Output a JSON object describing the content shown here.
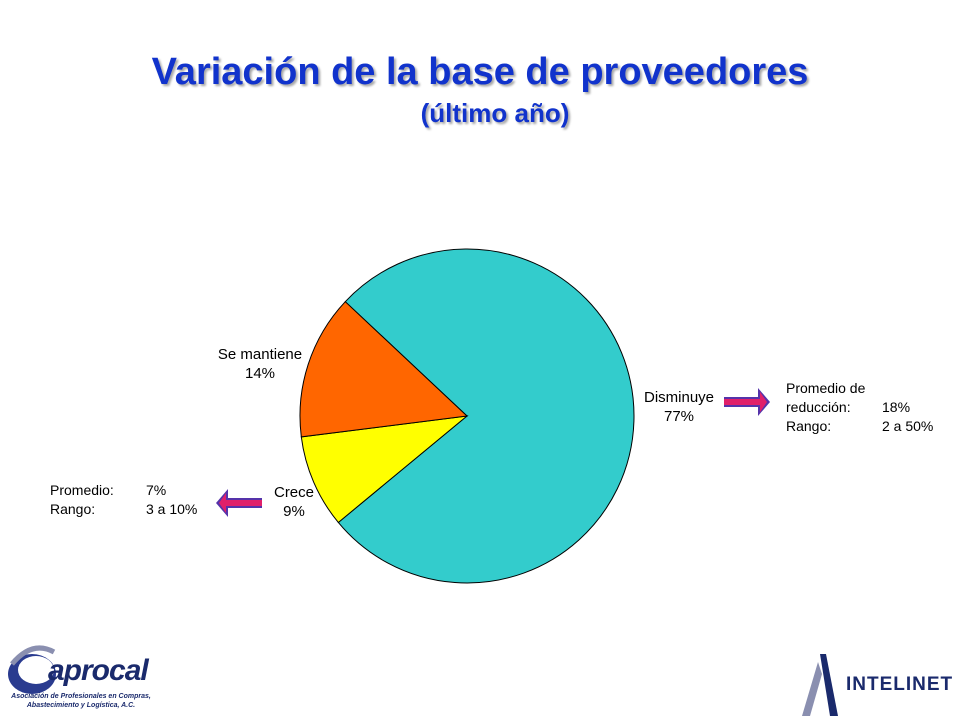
{
  "title": "Variación de la base de proveedores",
  "subtitle": "(último año)",
  "chart_data": {
    "type": "pie",
    "slices": [
      {
        "label": "Disminuye",
        "value": 77,
        "value_label": "77%",
        "color": "#33CCCC"
      },
      {
        "label": "Crece",
        "value": 9,
        "value_label": "9%",
        "color": "#FFFF00"
      },
      {
        "label": "Se mantiene",
        "value": 14,
        "value_label": "14%",
        "color": "#FF6600"
      }
    ]
  },
  "notes": {
    "left": {
      "promedio_label": "Promedio:",
      "promedio_value": "7%",
      "rango_label": "Rango:",
      "rango_value": "3 a 10%"
    },
    "right": {
      "promedio_line1": "Promedio de",
      "promedio_label": "reducción:",
      "promedio_value": "18%",
      "rango_label": "Rango:",
      "rango_value": "2 a 50%"
    }
  },
  "logos": {
    "left_name": "aprocal",
    "left_tagline": "Asociación de Profesionales en Compras, Abastecimiento y Logística, A.C.",
    "right_name": "INTELINET"
  },
  "colors": {
    "title": "#1133CC",
    "arrow_red": "#E0206A",
    "arrow_blue": "#5533AA"
  }
}
